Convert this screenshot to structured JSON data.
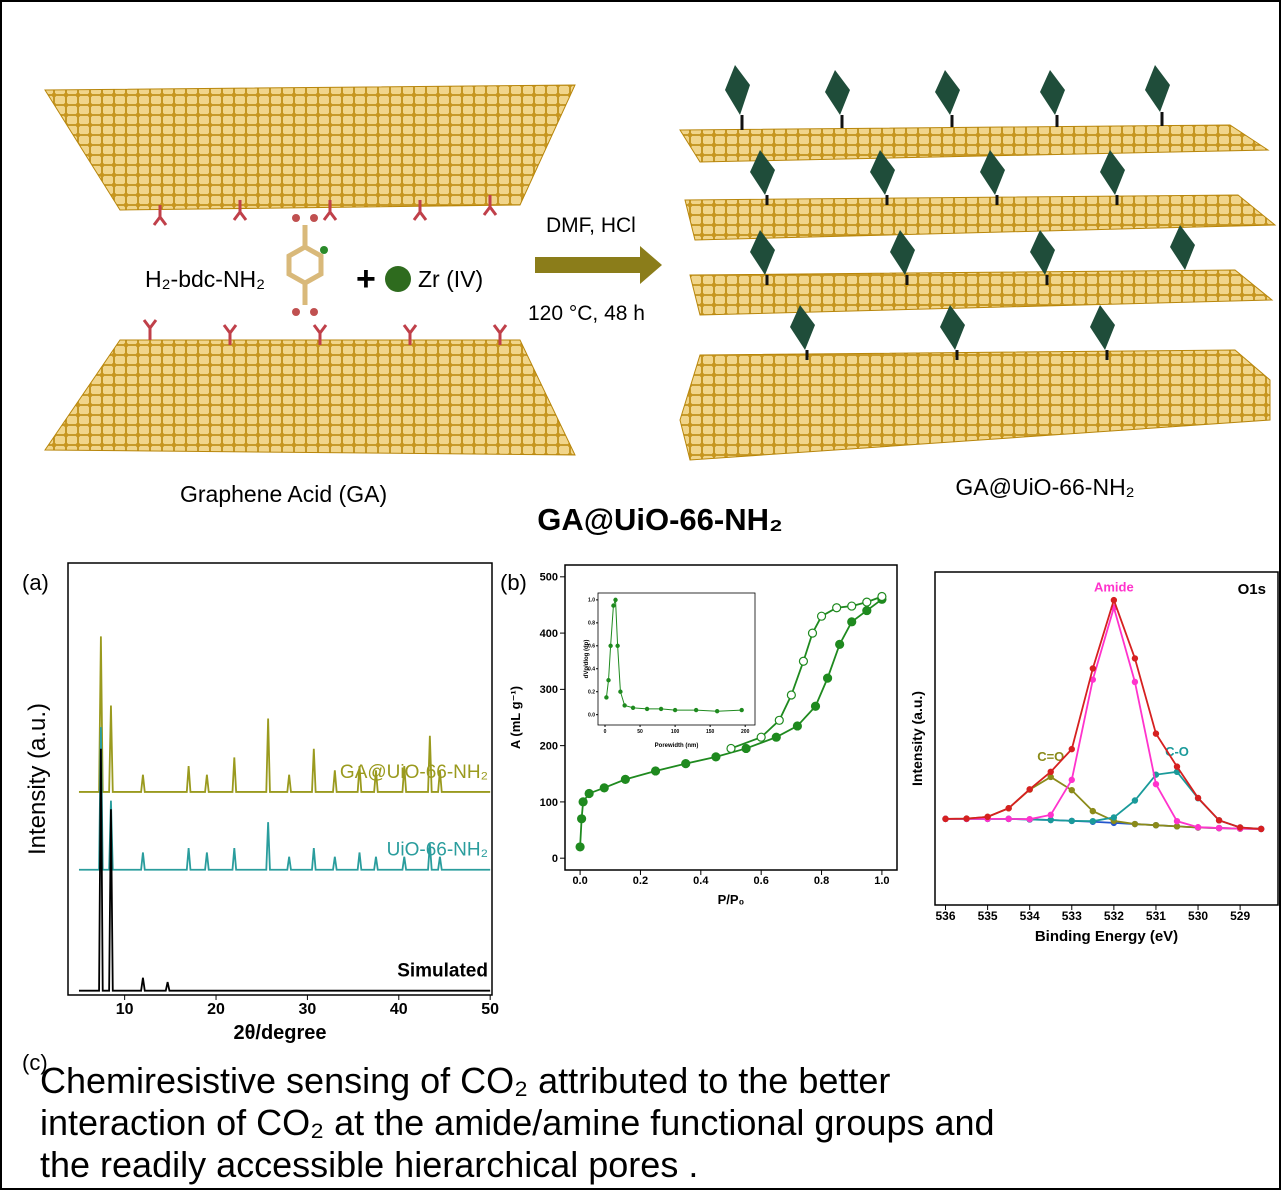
{
  "scheme": {
    "reactant": "H₂-bdc-NH₂",
    "plus": "+",
    "metal": "Zr (IV)",
    "conditions_top": "DMF, HCl",
    "conditions_bottom": "120 °C, 48 h",
    "left_label": "Graphene Acid (GA)",
    "right_label": "GA@UiO-66-NH₂",
    "product_title": "GA@UiO-66-NH₂"
  },
  "cropped_labels": [
    "(c)"
  ],
  "chart_data": [
    {
      "type": "line",
      "panel_label": "(a)",
      "xlabel": "2θ/degree",
      "ylabel": "Intensity (a.u.)",
      "xlim": [
        3.8,
        50.2
      ],
      "xticks": [
        10,
        20,
        30,
        40,
        50
      ],
      "ylim": [
        0,
        100
      ],
      "series": [
        {
          "name": "GA@UiO-66-NH₂",
          "color": "#9a9a1e",
          "x": [
            5,
            7.2,
            7.4,
            7.6,
            8.3,
            8.5,
            8.7,
            11.8,
            12,
            12.2,
            16.8,
            17,
            17.2,
            18.8,
            19,
            19.2,
            21.8,
            22,
            22.2,
            25.5,
            25.7,
            25.9,
            27.8,
            28,
            28.2,
            30.5,
            30.7,
            30.9,
            32.8,
            33,
            33.2,
            35.5,
            35.7,
            35.9,
            37.3,
            37.5,
            37.7,
            40.4,
            40.6,
            40.8,
            43.2,
            43.4,
            43.6,
            44.3,
            44.5,
            44.7,
            50
          ],
          "values": [
            47,
            47,
            83,
            47,
            47,
            67,
            47,
            47,
            51,
            47,
            47,
            53,
            47,
            47,
            51,
            47,
            47,
            55,
            47,
            47,
            64,
            47,
            47,
            51,
            47,
            47,
            57,
            47,
            47,
            52,
            47,
            47,
            53,
            47,
            47,
            52,
            47,
            47,
            53,
            47,
            47,
            60,
            47,
            47,
            52,
            47,
            47
          ]
        },
        {
          "name": "UiO-66-NH₂",
          "color": "#2a9d9d",
          "x": [
            5,
            7.2,
            7.4,
            7.6,
            8.3,
            8.5,
            8.7,
            11.8,
            12,
            12.2,
            16.8,
            17,
            17.2,
            18.8,
            19,
            19.2,
            21.8,
            22,
            22.2,
            25.5,
            25.7,
            25.9,
            27.8,
            28,
            28.2,
            30.5,
            30.7,
            30.9,
            32.8,
            33,
            33.2,
            35.5,
            35.7,
            35.9,
            37.3,
            37.5,
            37.7,
            40.4,
            40.6,
            40.8,
            43.2,
            43.4,
            43.6,
            44.3,
            44.5,
            44.7,
            50
          ],
          "values": [
            29,
            29,
            62,
            29,
            29,
            45,
            29,
            29,
            33,
            29,
            29,
            34,
            29,
            29,
            33,
            29,
            29,
            34,
            29,
            29,
            40,
            29,
            29,
            32,
            29,
            29,
            34,
            29,
            29,
            32,
            29,
            29,
            33,
            29,
            29,
            32,
            29,
            29,
            32,
            29,
            29,
            35,
            29,
            29,
            32,
            29,
            29
          ]
        },
        {
          "name": "Simulated",
          "color": "#000000",
          "x": [
            5,
            7.2,
            7.4,
            7.6,
            8.3,
            8.5,
            8.7,
            11.8,
            12,
            12.2,
            14.5,
            14.7,
            14.9,
            50
          ],
          "values": [
            1,
            1,
            57,
            1,
            1,
            43,
            1,
            1,
            4,
            1,
            1,
            3,
            1,
            1
          ]
        }
      ]
    },
    {
      "type": "line",
      "panel_label": "(b)",
      "xlabel": "P/P₀",
      "ylabel": "A (mL g⁻¹)",
      "markers": true,
      "xlim": [
        -0.05,
        1.05
      ],
      "xticks": [
        {
          "value": 0,
          "label": "0.0"
        },
        0.2,
        0.4,
        0.6,
        0.8,
        {
          "value": 1,
          "label": "1.0"
        }
      ],
      "ylim": [
        -21,
        521
      ],
      "yticks": [
        0,
        100,
        200,
        300,
        400,
        500
      ],
      "series": [
        {
          "color": "#1f8a1f",
          "x": [
            0,
            0.005,
            0.01,
            0.03,
            0.08,
            0.15,
            0.25,
            0.35,
            0.45,
            0.55,
            0.65,
            0.72,
            0.78,
            0.82,
            0.86,
            0.9,
            0.95,
            1.0
          ],
          "values": [
            20,
            70,
            100,
            115,
            125,
            140,
            155,
            168,
            180,
            195,
            215,
            235,
            270,
            320,
            380,
            420,
            440,
            460
          ]
        },
        {
          "color": "#1f8a1f",
          "x": [
            1.0,
            0.95,
            0.9,
            0.85,
            0.8,
            0.77,
            0.74,
            0.7,
            0.66,
            0.6,
            0.5
          ],
          "values": [
            465,
            455,
            448,
            445,
            430,
            400,
            350,
            290,
            245,
            215,
            195
          ]
        }
      ],
      "inset": {
        "type": "line",
        "xlabel": "Porewidth (nm)",
        "ylabel": "dVp/dlog (dp)",
        "markers": true,
        "xlim": [
          -10,
          214
        ],
        "xticks": [
          0,
          50,
          100,
          150,
          200
        ],
        "ylim": [
          -0.09,
          1.06
        ],
        "yticks": [
          {
            "value": 0,
            "label": "0.0"
          },
          0.2,
          0.4,
          0.6,
          0.8,
          {
            "value": 1,
            "label": "1.0"
          }
        ],
        "series": [
          {
            "color": "#1f8a1f",
            "x": [
              2,
              5,
              8,
              12,
              15,
              18,
              22,
              28,
              40,
              60,
              80,
              100,
              130,
              160,
              195
            ],
            "values": [
              0.15,
              0.3,
              0.6,
              0.95,
              1.0,
              0.6,
              0.2,
              0.08,
              0.06,
              0.05,
              0.05,
              0.04,
              0.04,
              0.03,
              0.04
            ]
          }
        ]
      }
    },
    {
      "type": "line",
      "xlabel": "Binding Energy (eV)",
      "ylabel": "Intensity (a.u.)",
      "annotation": "O1s",
      "markers": true,
      "xlim": [
        536.25,
        528.1
      ],
      "xticks": [
        536,
        535,
        534,
        533,
        532,
        531,
        530,
        529
      ],
      "ylim": [
        -20,
        96
      ],
      "x": [
        536,
        535.5,
        535,
        534.5,
        534,
        533.5,
        533,
        532.5,
        532,
        531.5,
        531,
        530.5,
        530,
        529.5,
        529,
        528.5
      ],
      "series": [
        {
          "color": "#2255cc",
          "values": [
            10,
            10,
            10,
            10,
            9.8,
            9.6,
            9.3,
            9,
            8.6,
            8.2,
            7.8,
            7.4,
            7,
            6.8,
            6.6,
            6.5
          ]
        },
        {
          "name": "C=O",
          "color": "#8b8b1a",
          "values": [
            10,
            10.1,
            10.7,
            13.7,
            20.2,
            24.6,
            20.0,
            12.7,
            9.3,
            8.2,
            7.8,
            7.4,
            7,
            6.8,
            6.6,
            6.5
          ]
        },
        {
          "name": "C-O",
          "color": "#1a9a9a",
          "values": [
            10,
            10,
            10,
            10,
            9.8,
            9.6,
            9.3,
            9.2,
            10.5,
            16.4,
            25.4,
            26.4,
            17.2,
            9.5,
            7.0,
            6.5
          ]
        },
        {
          "name": "Amide",
          "color": "#ff33cc",
          "values": [
            10,
            10,
            10,
            10,
            9.9,
            11.4,
            23.6,
            58.5,
            83.6,
            57.7,
            22.1,
            9.2,
            7.1,
            6.8,
            6.6,
            6.5
          ]
        },
        {
          "color": "#d62020",
          "values": [
            10,
            10.1,
            10.7,
            13.7,
            20.3,
            26.4,
            34.3,
            62.4,
            86.2,
            65.9,
            39.7,
            28.2,
            17.3,
            9.5,
            7.0,
            6.5
          ]
        }
      ]
    }
  ],
  "caption": {
    "lines": [
      "Chemiresistive sensing of CO₂ attributed to the better",
      "interaction of CO₂ at the amide/amine functional groups and",
      "the readily accessible hierarchical pores ."
    ]
  }
}
